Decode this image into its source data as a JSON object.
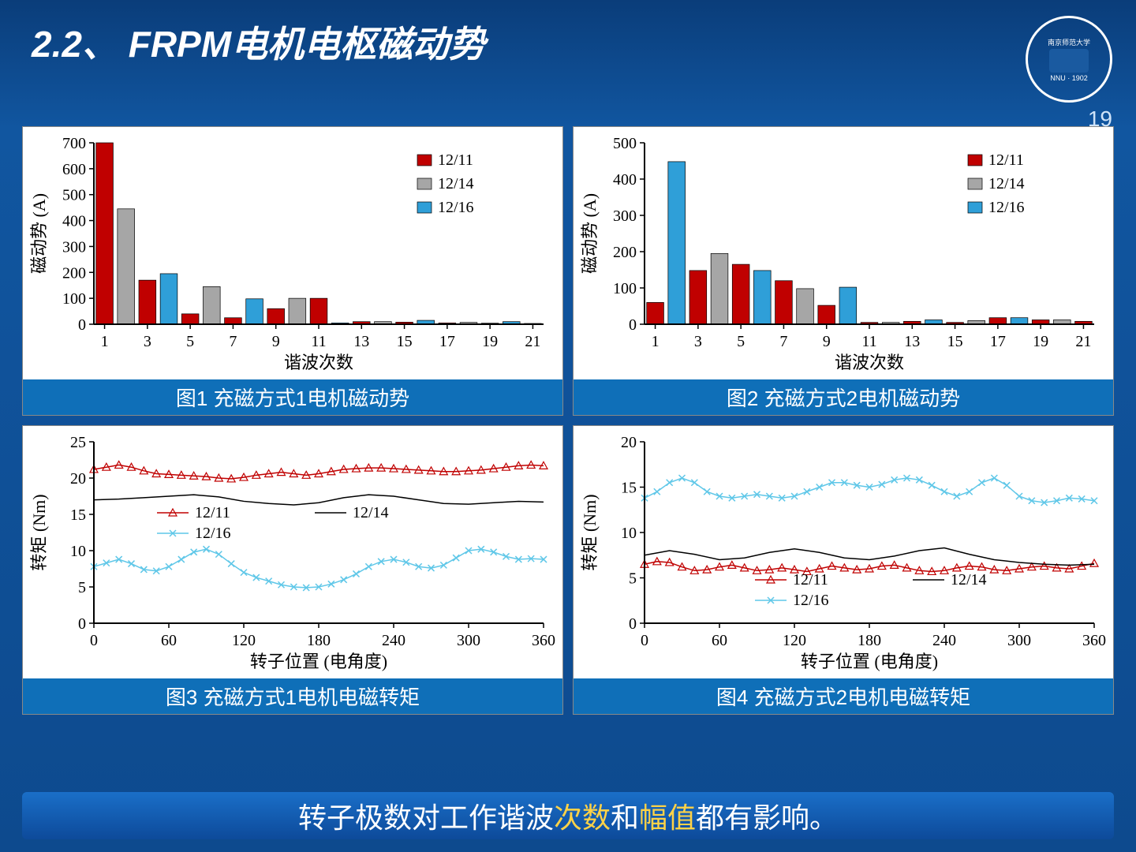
{
  "header": {
    "title": "2.2、 FRPM电机电枢磁动势",
    "page_number": "19",
    "seal_text_top": "南京师范大学",
    "seal_text_bottom": "NNU · 1902"
  },
  "colors": {
    "red": "#c00000",
    "gray": "#a6a6a6",
    "blue": "#2f9fd8",
    "black": "#000000",
    "lightblue_line": "#5fc7e8",
    "plot_bg": "#ffffff",
    "caption_bg": "#0f6fb8",
    "footer_highlight": "#ffd247"
  },
  "chart1": {
    "type": "bar",
    "caption": "图1  充磁方式1电机磁动势",
    "xlabel": "谐波次数",
    "ylabel": "磁动势 (A)",
    "ylim": [
      0,
      700
    ],
    "ytick_step": 100,
    "xticks": [
      1,
      3,
      5,
      7,
      9,
      11,
      13,
      15,
      17,
      19,
      21
    ],
    "categories": [
      1,
      2,
      3,
      4,
      5,
      6,
      7,
      8,
      9,
      10,
      11,
      12,
      13,
      14,
      15,
      16,
      17,
      18,
      19,
      20,
      21
    ],
    "series": [
      {
        "name": "12/11",
        "color": "#c00000",
        "values": [
          700,
          0,
          170,
          0,
          40,
          0,
          25,
          0,
          60,
          0,
          100,
          0,
          10,
          0,
          8,
          0,
          5,
          0,
          4,
          0,
          3
        ]
      },
      {
        "name": "12/14",
        "color": "#a6a6a6",
        "values": [
          0,
          445,
          0,
          0,
          0,
          145,
          0,
          0,
          0,
          100,
          0,
          0,
          0,
          10,
          0,
          0,
          0,
          7,
          0,
          0,
          0
        ]
      },
      {
        "name": "12/16",
        "color": "#2f9fd8",
        "values": [
          0,
          0,
          0,
          195,
          0,
          0,
          0,
          98,
          0,
          0,
          0,
          5,
          0,
          0,
          0,
          15,
          0,
          0,
          0,
          10,
          0
        ]
      }
    ],
    "legend_pos": "top-right"
  },
  "chart2": {
    "type": "bar",
    "caption": "图2  充磁方式2电机磁动势",
    "xlabel": "谐波次数",
    "ylabel": "磁动势 (A)",
    "ylim": [
      0,
      500
    ],
    "ytick_step": 100,
    "xticks": [
      1,
      3,
      5,
      7,
      9,
      11,
      13,
      15,
      17,
      19,
      21
    ],
    "categories": [
      1,
      2,
      3,
      4,
      5,
      6,
      7,
      8,
      9,
      10,
      11,
      12,
      13,
      14,
      15,
      16,
      17,
      18,
      19,
      20,
      21
    ],
    "series": [
      {
        "name": "12/11",
        "color": "#c00000",
        "values": [
          60,
          0,
          148,
          0,
          165,
          0,
          120,
          0,
          52,
          0,
          5,
          0,
          8,
          0,
          5,
          0,
          18,
          0,
          12,
          0,
          8
        ]
      },
      {
        "name": "12/14",
        "color": "#a6a6a6",
        "values": [
          0,
          5,
          0,
          195,
          0,
          0,
          0,
          98,
          0,
          0,
          0,
          5,
          0,
          0,
          0,
          10,
          0,
          0,
          0,
          12,
          0
        ]
      },
      {
        "name": "12/16",
        "color": "#2f9fd8",
        "values": [
          0,
          448,
          0,
          0,
          0,
          148,
          0,
          0,
          0,
          102,
          0,
          0,
          0,
          12,
          0,
          0,
          0,
          18,
          0,
          0,
          0
        ]
      }
    ],
    "legend_pos": "top-right"
  },
  "chart3": {
    "type": "line",
    "caption": "图3  充磁方式1电机电磁转矩",
    "xlabel": "转子位置 (电角度)",
    "ylabel": "转矩 (Nm)",
    "xlim": [
      0,
      360
    ],
    "xtick_step": 60,
    "ylim": [
      0,
      25
    ],
    "ytick_step": 5,
    "series": [
      {
        "name": "12/11",
        "color": "#c00000",
        "marker": "triangle",
        "values": [
          [
            0,
            21.2
          ],
          [
            10,
            21.5
          ],
          [
            20,
            21.8
          ],
          [
            30,
            21.5
          ],
          [
            40,
            21.0
          ],
          [
            50,
            20.6
          ],
          [
            60,
            20.5
          ],
          [
            70,
            20.4
          ],
          [
            80,
            20.3
          ],
          [
            90,
            20.2
          ],
          [
            100,
            20.0
          ],
          [
            110,
            19.9
          ],
          [
            120,
            20.1
          ],
          [
            130,
            20.4
          ],
          [
            140,
            20.6
          ],
          [
            150,
            20.8
          ],
          [
            160,
            20.6
          ],
          [
            170,
            20.4
          ],
          [
            180,
            20.6
          ],
          [
            190,
            20.9
          ],
          [
            200,
            21.2
          ],
          [
            210,
            21.3
          ],
          [
            220,
            21.4
          ],
          [
            230,
            21.4
          ],
          [
            240,
            21.3
          ],
          [
            250,
            21.2
          ],
          [
            260,
            21.1
          ],
          [
            270,
            21.0
          ],
          [
            280,
            20.9
          ],
          [
            290,
            20.9
          ],
          [
            300,
            21.0
          ],
          [
            310,
            21.1
          ],
          [
            320,
            21.3
          ],
          [
            330,
            21.5
          ],
          [
            340,
            21.7
          ],
          [
            350,
            21.8
          ],
          [
            360,
            21.7
          ]
        ]
      },
      {
        "name": "12/14",
        "color": "#000000",
        "marker": "none",
        "values": [
          [
            0,
            17.0
          ],
          [
            20,
            17.1
          ],
          [
            40,
            17.3
          ],
          [
            60,
            17.5
          ],
          [
            80,
            17.7
          ],
          [
            100,
            17.4
          ],
          [
            120,
            16.8
          ],
          [
            140,
            16.5
          ],
          [
            160,
            16.3
          ],
          [
            180,
            16.6
          ],
          [
            200,
            17.3
          ],
          [
            220,
            17.7
          ],
          [
            240,
            17.5
          ],
          [
            260,
            17.0
          ],
          [
            280,
            16.5
          ],
          [
            300,
            16.4
          ],
          [
            320,
            16.6
          ],
          [
            340,
            16.8
          ],
          [
            360,
            16.7
          ]
        ]
      },
      {
        "name": "12/16",
        "color": "#5fc7e8",
        "marker": "cross",
        "values": [
          [
            0,
            7.8
          ],
          [
            10,
            8.3
          ],
          [
            20,
            8.8
          ],
          [
            30,
            8.2
          ],
          [
            40,
            7.4
          ],
          [
            50,
            7.2
          ],
          [
            60,
            7.8
          ],
          [
            70,
            8.8
          ],
          [
            80,
            9.8
          ],
          [
            90,
            10.2
          ],
          [
            100,
            9.5
          ],
          [
            110,
            8.2
          ],
          [
            120,
            7.0
          ],
          [
            130,
            6.3
          ],
          [
            140,
            5.8
          ],
          [
            150,
            5.3
          ],
          [
            160,
            5.0
          ],
          [
            170,
            4.9
          ],
          [
            180,
            5.0
          ],
          [
            190,
            5.4
          ],
          [
            200,
            6.0
          ],
          [
            210,
            6.8
          ],
          [
            220,
            7.8
          ],
          [
            230,
            8.5
          ],
          [
            240,
            8.8
          ],
          [
            250,
            8.4
          ],
          [
            260,
            7.8
          ],
          [
            270,
            7.6
          ],
          [
            280,
            8.0
          ],
          [
            290,
            9.0
          ],
          [
            300,
            10.0
          ],
          [
            310,
            10.2
          ],
          [
            320,
            9.8
          ],
          [
            330,
            9.2
          ],
          [
            340,
            8.8
          ],
          [
            350,
            8.9
          ],
          [
            360,
            8.8
          ]
        ]
      }
    ],
    "legend_pos": "middle"
  },
  "chart4": {
    "type": "line",
    "caption": "图4  充磁方式2电机电磁转矩",
    "xlabel": "转子位置 (电角度)",
    "ylabel": "转矩 (Nm)",
    "xlim": [
      0,
      360
    ],
    "xtick_step": 60,
    "ylim": [
      0,
      20
    ],
    "ytick_step": 5,
    "series": [
      {
        "name": "12/11",
        "color": "#c00000",
        "marker": "triangle",
        "values": [
          [
            0,
            6.5
          ],
          [
            10,
            6.8
          ],
          [
            20,
            6.7
          ],
          [
            30,
            6.2
          ],
          [
            40,
            5.8
          ],
          [
            50,
            5.9
          ],
          [
            60,
            6.2
          ],
          [
            70,
            6.4
          ],
          [
            80,
            6.1
          ],
          [
            90,
            5.8
          ],
          [
            100,
            5.9
          ],
          [
            110,
            6.1
          ],
          [
            120,
            5.9
          ],
          [
            130,
            5.7
          ],
          [
            140,
            6.0
          ],
          [
            150,
            6.3
          ],
          [
            160,
            6.1
          ],
          [
            170,
            5.9
          ],
          [
            180,
            6.0
          ],
          [
            190,
            6.3
          ],
          [
            200,
            6.4
          ],
          [
            210,
            6.1
          ],
          [
            220,
            5.8
          ],
          [
            230,
            5.7
          ],
          [
            240,
            5.8
          ],
          [
            250,
            6.1
          ],
          [
            260,
            6.3
          ],
          [
            270,
            6.2
          ],
          [
            280,
            5.9
          ],
          [
            290,
            5.8
          ],
          [
            300,
            6.0
          ],
          [
            310,
            6.2
          ],
          [
            320,
            6.3
          ],
          [
            330,
            6.1
          ],
          [
            340,
            6.0
          ],
          [
            350,
            6.3
          ],
          [
            360,
            6.6
          ]
        ]
      },
      {
        "name": "12/14",
        "color": "#000000",
        "marker": "none",
        "values": [
          [
            0,
            7.5
          ],
          [
            20,
            8.0
          ],
          [
            40,
            7.6
          ],
          [
            60,
            7.0
          ],
          [
            80,
            7.2
          ],
          [
            100,
            7.8
          ],
          [
            120,
            8.2
          ],
          [
            140,
            7.8
          ],
          [
            160,
            7.2
          ],
          [
            180,
            7.0
          ],
          [
            200,
            7.4
          ],
          [
            220,
            8.0
          ],
          [
            240,
            8.3
          ],
          [
            260,
            7.6
          ],
          [
            280,
            7.0
          ],
          [
            300,
            6.7
          ],
          [
            320,
            6.5
          ],
          [
            340,
            6.4
          ],
          [
            360,
            6.5
          ]
        ]
      },
      {
        "name": "12/16",
        "color": "#5fc7e8",
        "marker": "cross",
        "values": [
          [
            0,
            13.8
          ],
          [
            10,
            14.5
          ],
          [
            20,
            15.5
          ],
          [
            30,
            16.0
          ],
          [
            40,
            15.5
          ],
          [
            50,
            14.5
          ],
          [
            60,
            14.0
          ],
          [
            70,
            13.8
          ],
          [
            80,
            14.0
          ],
          [
            90,
            14.2
          ],
          [
            100,
            14.0
          ],
          [
            110,
            13.8
          ],
          [
            120,
            14.0
          ],
          [
            130,
            14.5
          ],
          [
            140,
            15.0
          ],
          [
            150,
            15.5
          ],
          [
            160,
            15.5
          ],
          [
            170,
            15.2
          ],
          [
            180,
            15.0
          ],
          [
            190,
            15.3
          ],
          [
            200,
            15.8
          ],
          [
            210,
            16.0
          ],
          [
            220,
            15.8
          ],
          [
            230,
            15.2
          ],
          [
            240,
            14.5
          ],
          [
            250,
            14.0
          ],
          [
            260,
            14.5
          ],
          [
            270,
            15.5
          ],
          [
            280,
            16.0
          ],
          [
            290,
            15.2
          ],
          [
            300,
            14.0
          ],
          [
            310,
            13.5
          ],
          [
            320,
            13.3
          ],
          [
            330,
            13.5
          ],
          [
            340,
            13.8
          ],
          [
            350,
            13.7
          ],
          [
            360,
            13.5
          ]
        ]
      }
    ],
    "legend_pos": "bottom"
  },
  "footer": {
    "prefix": "转子极数对工作谐波",
    "hl1": "次数",
    "mid": "和",
    "hl2": "幅值",
    "suffix": "都有影响。"
  }
}
